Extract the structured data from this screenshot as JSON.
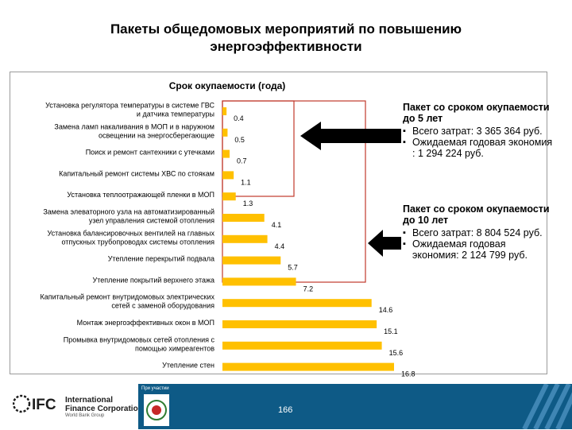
{
  "slide": {
    "title_line1": "Пакеты общедомовых мероприятий по повышению",
    "title_line2": "энергоэффективности"
  },
  "chart_data": {
    "type": "bar",
    "orientation": "horizontal",
    "title": "Срок окупаемости (года)",
    "categories": [
      [
        "Установка регулятора температуры в системе ГВС",
        "и датчика температуры"
      ],
      [
        "Замена ламп накаливания в МОП и в наружном",
        "освещении на энергосберегающие"
      ],
      [
        "Поиск и ремонт сантехники с утечками"
      ],
      [
        "Капитальный ремонт системы ХВС по стоякам"
      ],
      [
        "Установка теплоотражающей пленки в МОП"
      ],
      [
        "Замена элеваторного узла на автоматизированный",
        "узел управления системой отопления"
      ],
      [
        "Установка балансировочных вентилей на главных",
        "отпускных трубопроводах системы отопления"
      ],
      [
        "Утепление перекрытий подвала"
      ],
      [
        "Утепление покрытий верхнего этажа"
      ],
      [
        "Капитальный ремонт внутридомовых электрических",
        "сетей с заменой оборудования"
      ],
      [
        "Монтаж энергоэффективных окон в МОП"
      ],
      [
        "Промывка внутридомовых сетей отопления с",
        "помощью химреагентов"
      ],
      [
        "Утепление стен"
      ]
    ],
    "values": [
      0.4,
      0.5,
      0.7,
      1.1,
      1.3,
      4.1,
      4.4,
      5.7,
      7.2,
      14.6,
      15.1,
      15.6,
      16.8
    ],
    "value_labels": [
      "0.4",
      "0.5",
      "0.7",
      "1.1",
      "1.3",
      "4.1",
      "4.4",
      "5.7",
      "7.2",
      "14.6",
      "15.1",
      "15.6",
      "16.8"
    ],
    "xlim": [
      0,
      17
    ],
    "bar_color": "#ffc000",
    "highlight_color": "#c0392b",
    "highlight_last_index": 8
  },
  "packages": [
    {
      "title": "Пакет со сроком окупаемости до 5 лет",
      "items": [
        "Всего затрат: 3 365 364 руб.",
        "Ожидаемая годовая экономия : 1 294 224 руб."
      ]
    },
    {
      "title": "Пакет со сроком окупаемости до 10 лет",
      "items": [
        "Всего затрат: 8 804 524 руб.",
        "Ожидаемая годовая экономия: 2 124 799 руб."
      ]
    }
  ],
  "footer": {
    "org_name_line1": "International",
    "org_name_line2": "Finance Corporation",
    "org_sub": "World Bank Group",
    "partner_label": "При участии",
    "page_number": "166",
    "logo_text": "IFC"
  }
}
